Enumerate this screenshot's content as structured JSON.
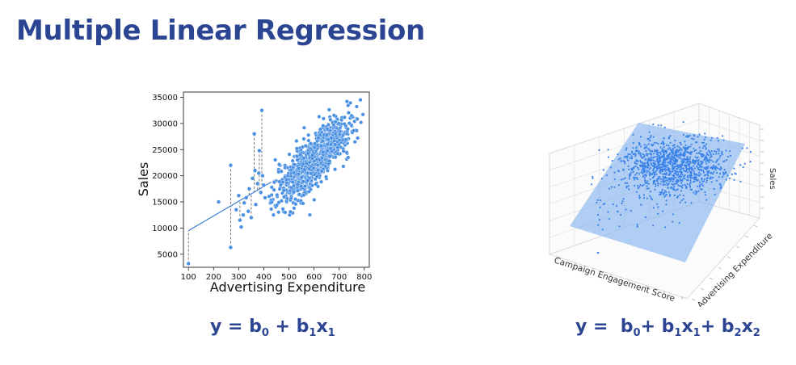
{
  "slide": {
    "title": "Multiple Linear Regression"
  },
  "colors": {
    "title": "#2b4593",
    "points": "#4a90e2",
    "plane": "#7fb0f0"
  },
  "chart_data": [
    {
      "type": "scatter",
      "title": "",
      "xlabel": "Advertising Expenditure",
      "ylabel": "Sales",
      "xlim": [
        80,
        820
      ],
      "ylim": [
        2500,
        36000
      ],
      "xticks": [
        100,
        200,
        300,
        400,
        500,
        600,
        700,
        800
      ],
      "yticks": [
        5000,
        10000,
        15000,
        20000,
        25000,
        30000,
        35000
      ],
      "grid": false,
      "regression_line": {
        "x": [
          100,
          430
        ],
        "y": [
          9500,
          18800
        ]
      },
      "cluster": {
        "x_center": 600,
        "y_center": 23000,
        "x_spread": 75,
        "y_spread": 3200
      },
      "points": [
        {
          "x": 100,
          "y": 3200
        },
        {
          "x": 220,
          "y": 15000
        },
        {
          "x": 268,
          "y": 22000
        },
        {
          "x": 268,
          "y": 6300
        },
        {
          "x": 290,
          "y": 13500
        },
        {
          "x": 300,
          "y": 16200
        },
        {
          "x": 305,
          "y": 11500
        },
        {
          "x": 310,
          "y": 10200
        },
        {
          "x": 318,
          "y": 12500
        },
        {
          "x": 322,
          "y": 14800
        },
        {
          "x": 330,
          "y": 15800
        },
        {
          "x": 338,
          "y": 13200
        },
        {
          "x": 342,
          "y": 17500
        },
        {
          "x": 350,
          "y": 12000
        },
        {
          "x": 355,
          "y": 19500
        },
        {
          "x": 362,
          "y": 28000
        },
        {
          "x": 365,
          "y": 21000
        },
        {
          "x": 368,
          "y": 14500
        },
        {
          "x": 375,
          "y": 18500
        },
        {
          "x": 380,
          "y": 20500
        },
        {
          "x": 382,
          "y": 24800
        },
        {
          "x": 388,
          "y": 16800
        },
        {
          "x": 392,
          "y": 32500
        },
        {
          "x": 395,
          "y": 20000
        },
        {
          "x": 400,
          "y": 18200
        },
        {
          "x": 405,
          "y": 15800
        }
      ],
      "residual_points": [
        {
          "x": 100,
          "y": 3200
        },
        {
          "x": 268,
          "y": 22000
        },
        {
          "x": 268,
          "y": 6300
        },
        {
          "x": 305,
          "y": 11500
        },
        {
          "x": 322,
          "y": 14800
        },
        {
          "x": 342,
          "y": 17500
        },
        {
          "x": 350,
          "y": 12000
        },
        {
          "x": 362,
          "y": 28000
        },
        {
          "x": 375,
          "y": 18500
        },
        {
          "x": 382,
          "y": 24800
        },
        {
          "x": 392,
          "y": 32500
        }
      ]
    },
    {
      "type": "scatter3d",
      "title": "",
      "xlabel": "Campaign Engagement Score",
      "ylabel": "Advertising Expenditure",
      "zlabel": "Sales",
      "grid": true,
      "has_regression_plane": true
    }
  ],
  "equations": {
    "simple": {
      "lhs": "y = ",
      "b0": "b",
      "b0_sub": "0",
      "plus1": " + ",
      "b1": "b",
      "b1_sub": "1",
      "x1": "x",
      "x1_sub": "1"
    },
    "multiple": {
      "lhs": "y =  ",
      "b0": "b",
      "b0_sub": "0",
      "plus1": "+ ",
      "b1": "b",
      "b1_sub": "1",
      "x1": "x",
      "x1_sub": "1",
      "plus2": "+ ",
      "b2": "b",
      "b2_sub": "2",
      "x2": "x",
      "x2_sub": "2"
    }
  }
}
